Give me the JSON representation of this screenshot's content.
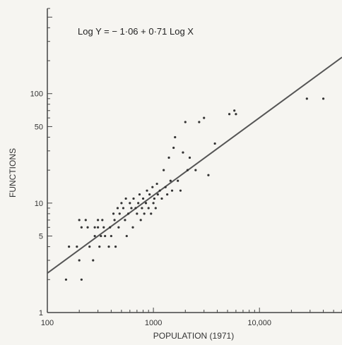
{
  "chart_data": {
    "type": "scatter",
    "title": "",
    "xlabel": "POPULATION (1971)",
    "ylabel": "FUNCTIONS",
    "xscale": "log",
    "yscale": "log",
    "xlim": [
      100,
      60000
    ],
    "ylim": [
      1,
      600
    ],
    "grid": false,
    "legend": "none",
    "annotation": "Log Y = − 1·06 + 0·71 Log X",
    "x_ticks": [
      {
        "value": 100,
        "label": "100"
      },
      {
        "value": 1000,
        "label": "1000"
      },
      {
        "value": 10000,
        "label": "10,000"
      }
    ],
    "y_ticks": [
      {
        "value": 1,
        "label": "1"
      },
      {
        "value": 5,
        "label": "5"
      },
      {
        "value": 10,
        "label": "10"
      },
      {
        "value": 50,
        "label": "50"
      },
      {
        "value": 100,
        "label": "100"
      }
    ],
    "fit_line": {
      "intercept": -1.06,
      "slope": 0.71,
      "x_range": [
        100,
        60000
      ]
    },
    "series": [
      {
        "points": [
          [
            150,
            2
          ],
          [
            160,
            4
          ],
          [
            190,
            4
          ],
          [
            200,
            3
          ],
          [
            200,
            7
          ],
          [
            210,
            2
          ],
          [
            210,
            6
          ],
          [
            230,
            7
          ],
          [
            240,
            6
          ],
          [
            250,
            4
          ],
          [
            270,
            3
          ],
          [
            280,
            5
          ],
          [
            280,
            6
          ],
          [
            300,
            7
          ],
          [
            300,
            6
          ],
          [
            310,
            4
          ],
          [
            320,
            5
          ],
          [
            330,
            7
          ],
          [
            340,
            6
          ],
          [
            350,
            5
          ],
          [
            380,
            4
          ],
          [
            390,
            6
          ],
          [
            400,
            5
          ],
          [
            420,
            8
          ],
          [
            430,
            7
          ],
          [
            440,
            4
          ],
          [
            460,
            9
          ],
          [
            470,
            6
          ],
          [
            480,
            8
          ],
          [
            500,
            10
          ],
          [
            520,
            9
          ],
          [
            540,
            7
          ],
          [
            550,
            11
          ],
          [
            560,
            5
          ],
          [
            580,
            8
          ],
          [
            600,
            10
          ],
          [
            620,
            9
          ],
          [
            640,
            6
          ],
          [
            650,
            11
          ],
          [
            680,
            9
          ],
          [
            700,
            8
          ],
          [
            720,
            10
          ],
          [
            740,
            12
          ],
          [
            760,
            7
          ],
          [
            780,
            9
          ],
          [
            800,
            11
          ],
          [
            820,
            8
          ],
          [
            850,
            10
          ],
          [
            870,
            13
          ],
          [
            900,
            9
          ],
          [
            920,
            12
          ],
          [
            950,
            8
          ],
          [
            980,
            14
          ],
          [
            1000,
            10
          ],
          [
            1020,
            11
          ],
          [
            1050,
            9
          ],
          [
            1080,
            15
          ],
          [
            1100,
            12
          ],
          [
            1150,
            13
          ],
          [
            1200,
            11
          ],
          [
            1250,
            20
          ],
          [
            1300,
            14
          ],
          [
            1350,
            12
          ],
          [
            1400,
            26
          ],
          [
            1450,
            16
          ],
          [
            1500,
            13
          ],
          [
            1550,
            32
          ],
          [
            1600,
            40
          ],
          [
            1700,
            16
          ],
          [
            1800,
            13
          ],
          [
            1900,
            29
          ],
          [
            2000,
            55
          ],
          [
            2100,
            20
          ],
          [
            2200,
            26
          ],
          [
            2500,
            20
          ],
          [
            2700,
            55
          ],
          [
            3000,
            60
          ],
          [
            3300,
            18
          ],
          [
            3800,
            35
          ],
          [
            5200,
            65
          ],
          [
            5800,
            70
          ],
          [
            6000,
            65
          ],
          [
            28000,
            90
          ],
          [
            40000,
            90
          ]
        ]
      }
    ]
  }
}
